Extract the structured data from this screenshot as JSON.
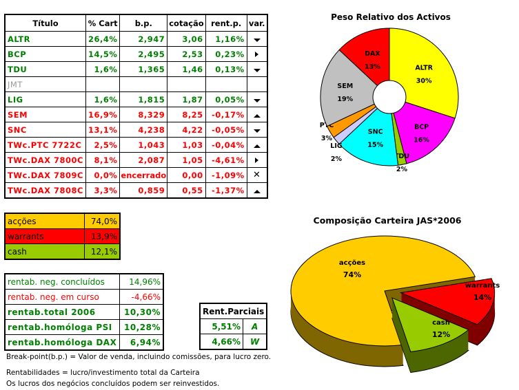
{
  "holdings": {
    "headers": [
      "Título",
      "% Cart",
      "b.p.",
      "cotação",
      "rent.p.",
      "var."
    ],
    "rows": [
      {
        "title": "ALTR",
        "pct": "26,4%",
        "bp": "2,947",
        "quote": "3,06",
        "rent": "1,16%",
        "var": "down",
        "color": "g"
      },
      {
        "title": "BCP",
        "pct": "14,5%",
        "bp": "2,495",
        "quote": "2,53",
        "rent": "0,23%",
        "var": "right",
        "color": "g"
      },
      {
        "title": "TDU",
        "pct": "1,6%",
        "bp": "1,365",
        "quote": "1,46",
        "rent": "0,13%",
        "var": "down",
        "color": "g"
      },
      {
        "title": "JMT",
        "pct": "",
        "bp": "",
        "quote": "",
        "rent": "",
        "var": "",
        "color": "gray"
      },
      {
        "title": "LIG",
        "pct": "1,6%",
        "bp": "1,815",
        "quote": "1,87",
        "rent": "0,05%",
        "var": "down",
        "color": "g"
      },
      {
        "title": "SEM",
        "pct": "16,9%",
        "bp": "8,329",
        "quote": "8,25",
        "rent": "-0,17%",
        "var": "up",
        "color": "red"
      },
      {
        "title": "SNC",
        "pct": "13,1%",
        "bp": "4,238",
        "quote": "4,22",
        "rent": "-0,05%",
        "var": "down",
        "color": "red"
      },
      {
        "title": "TWc.PTC 7722C",
        "pct": "2,5%",
        "bp": "1,043",
        "quote": "1,03",
        "rent": "-0,04%",
        "var": "up",
        "color": "red"
      },
      {
        "title": "TWc.DAX 7800C",
        "pct": "8,1%",
        "bp": "2,087",
        "quote": "1,05",
        "rent": "-4,61%",
        "var": "right",
        "color": "red"
      },
      {
        "title": "TWc.DAX 7809C",
        "pct": "0,0%",
        "bp": "encerrado",
        "quote": "0,00",
        "rent": "-1,09%",
        "var": "x",
        "color": "red"
      },
      {
        "title": "TWc.DAX 7808C",
        "pct": "3,3%",
        "bp": "0,859",
        "quote": "0,55",
        "rent": "-1,37%",
        "var": "up",
        "color": "red"
      }
    ]
  },
  "allocation": [
    {
      "label": "acções",
      "value": "74,0%",
      "color": "#ffcc00"
    },
    {
      "label": "warrants",
      "value": "13,9%",
      "color": "#ff0000"
    },
    {
      "label": "cash",
      "value": "12,1%",
      "color": "#99cc00"
    }
  ],
  "returns": [
    {
      "label": "rentab. neg. concluídos",
      "value": "14,96%",
      "style": "g"
    },
    {
      "label": "rentab. neg. em curso",
      "value": "-4,66%",
      "style": "red"
    },
    {
      "label": "rentab.total 2006",
      "value": "10,30%",
      "style": "gb"
    },
    {
      "label": "rentab.homóloga PSI",
      "value": "10,28%",
      "style": "gb"
    },
    {
      "label": "rentab.homóloga DAX",
      "value": "6,94%",
      "style": "gb"
    }
  ],
  "partial": {
    "header": "Rent.Parciais",
    "rows": [
      {
        "value": "5,51%",
        "code": "A"
      },
      {
        "value": "4,66%",
        "code": "W"
      }
    ]
  },
  "notes": [
    "Break-point(b.p.) = Valor de venda, incluindo comissões, para lucro zero.",
    "Rentabilidades = lucro/investimento total da Carteira",
    "Os lucros dos negócios concluídos podem ser reinvestidos."
  ],
  "chart_data": [
    {
      "type": "pie",
      "variant": "doughnut",
      "title": "Peso Relativo dos Activos",
      "categories": [
        "ALTR",
        "BCP",
        "TDU",
        "SNC",
        "LIG",
        "PTC",
        "SEM",
        "DAX"
      ],
      "values": [
        30,
        16,
        2,
        15,
        2,
        3,
        19,
        13
      ],
      "labels": [
        "30%",
        "16%",
        "2%",
        "15%",
        "2%",
        "3%",
        "19%",
        "13%"
      ],
      "colors": [
        "#ffff00",
        "#ff00ff",
        "#99cc00",
        "#00ffff",
        "#ccccff",
        "#ff9900",
        "#c0c0c0",
        "#ff0000"
      ]
    },
    {
      "type": "pie",
      "variant": "3d-exploded",
      "title": "Composição Carteira JAS*2006",
      "categories": [
        "acções",
        "warrants",
        "cash"
      ],
      "values": [
        74,
        14,
        12
      ],
      "labels": [
        "74%",
        "14%",
        "12%"
      ],
      "colors": [
        "#ffcc00",
        "#ff0000",
        "#99cc00"
      ],
      "side_colors": [
        "#806600",
        "#800000",
        "#4d6600"
      ]
    }
  ]
}
